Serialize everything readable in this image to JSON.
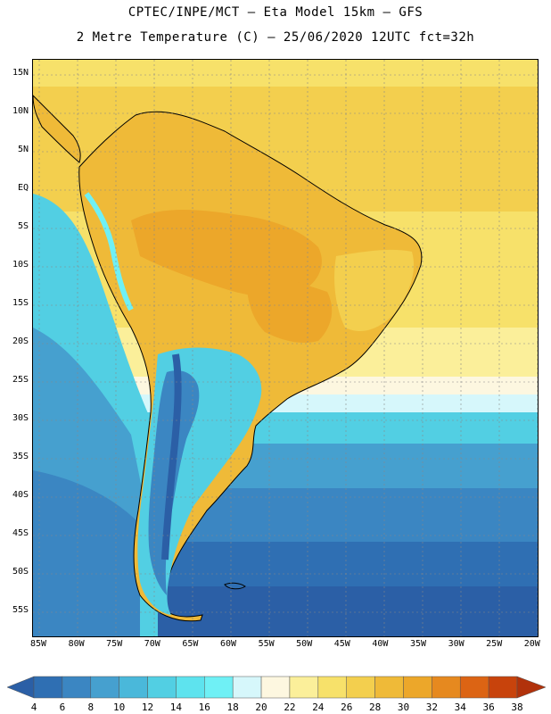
{
  "header": {
    "line1": "CPTEC/INPE/MCT –  Eta Model 15km – GFS",
    "line2": "2 Metre Temperature (C) – 25/06/2020 12UTC fct=32h"
  },
  "map": {
    "lat_labels": [
      "15N",
      "10N",
      "5N",
      "EQ",
      "5S",
      "10S",
      "15S",
      "20S",
      "25S",
      "30S",
      "35S",
      "40S",
      "45S",
      "50S",
      "55S"
    ],
    "lon_labels": [
      "85W",
      "80W",
      "75W",
      "70W",
      "65W",
      "60W",
      "55W",
      "50W",
      "45W",
      "40W",
      "35W",
      "30W",
      "25W",
      "20W"
    ]
  },
  "colorbar": {
    "labels": [
      "4",
      "6",
      "8",
      "10",
      "12",
      "14",
      "16",
      "18",
      "20",
      "22",
      "24",
      "26",
      "28",
      "30",
      "32",
      "34",
      "36",
      "38"
    ],
    "colors": [
      "#2b5fa6",
      "#2f6fb3",
      "#3b86c2",
      "#46a0cf",
      "#4ab8da",
      "#52cfe3",
      "#5ee3ee",
      "#6ff0f5",
      "#d6f7fb",
      "#fdf7e0",
      "#fbef9a",
      "#f7e16a",
      "#f3cf4e",
      "#efba38",
      "#eca72a",
      "#e6891f",
      "#dc6414",
      "#c8430c",
      "#b1320b"
    ]
  }
}
